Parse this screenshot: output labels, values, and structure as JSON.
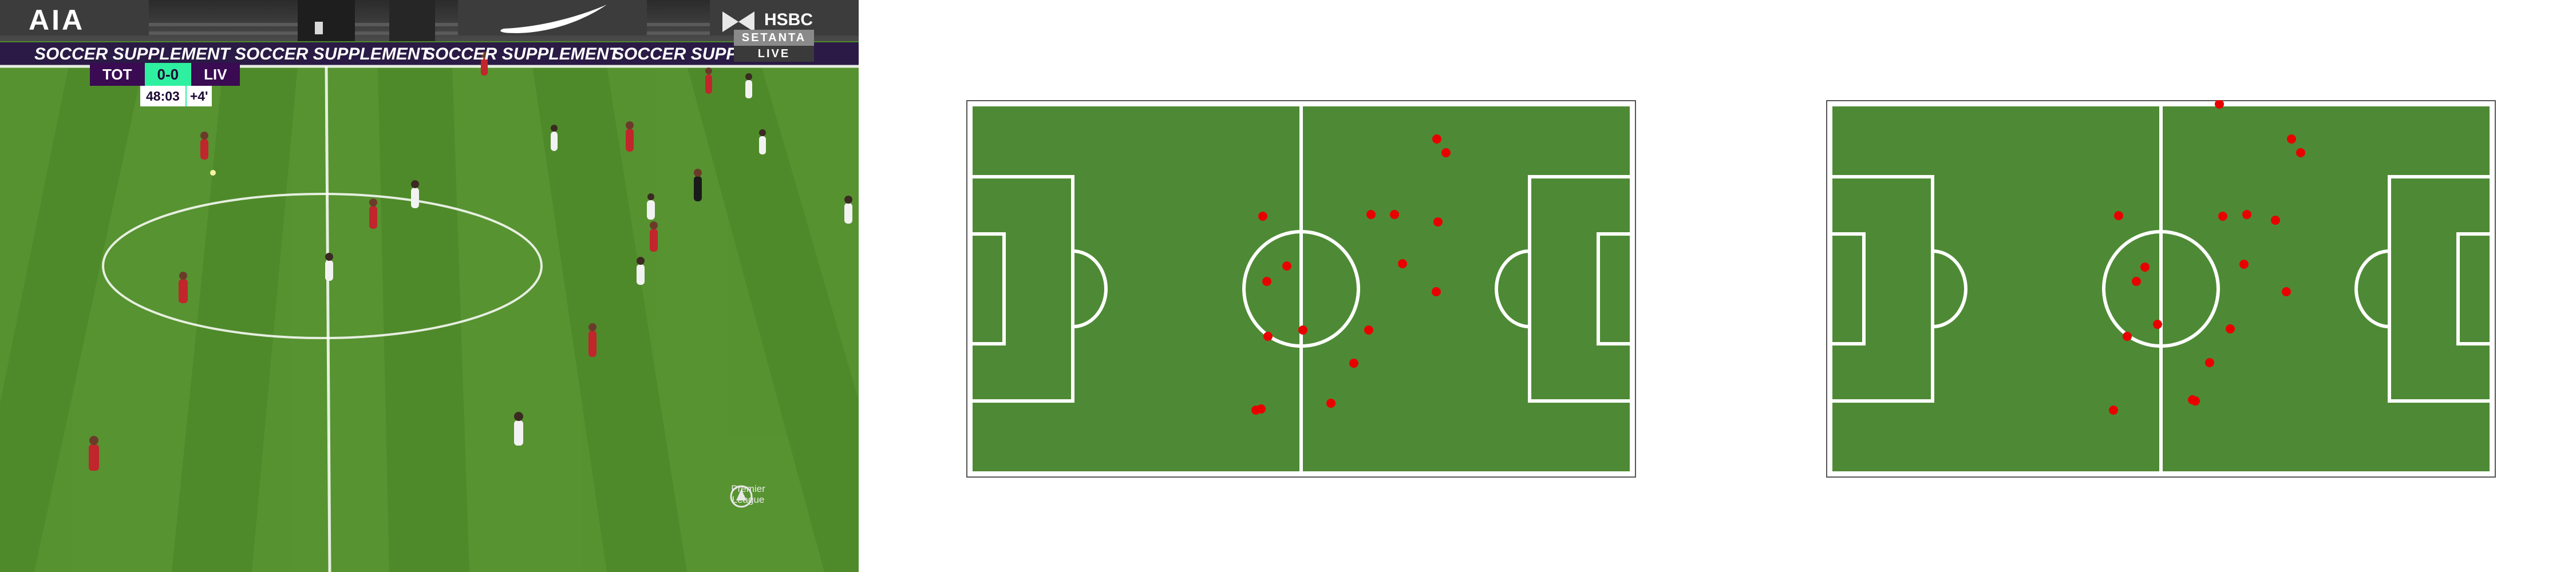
{
  "broadcast": {
    "scoreboard": {
      "home_team": "TOT",
      "score": "0-0",
      "away_team": "LIV",
      "clock": "48:03",
      "added_time": "+4'"
    },
    "broadcaster": {
      "name": "SETANTA",
      "status": "LIVE"
    },
    "stand_sponsors": {
      "left": "AIA",
      "right": "HSBC"
    },
    "ad_board_text": "SOCCER SUPPLEMENT",
    "league_logo_text": [
      "Premier",
      "League"
    ]
  },
  "minimaps": [
    {
      "pitch_color": "#4e8a35",
      "line_color": "#ffffff",
      "marker_color": "#e80000",
      "marker_count": 17
    },
    {
      "pitch_color": "#4e8a35",
      "line_color": "#ffffff",
      "marker_color": "#e80000",
      "marker_count": 18
    }
  ],
  "colors": {
    "home_kit": "#f2f2f2",
    "away_kit": "#c0262b",
    "scorebug_purple": "#3a0a52",
    "scorebug_green": "#2ef0a0"
  }
}
